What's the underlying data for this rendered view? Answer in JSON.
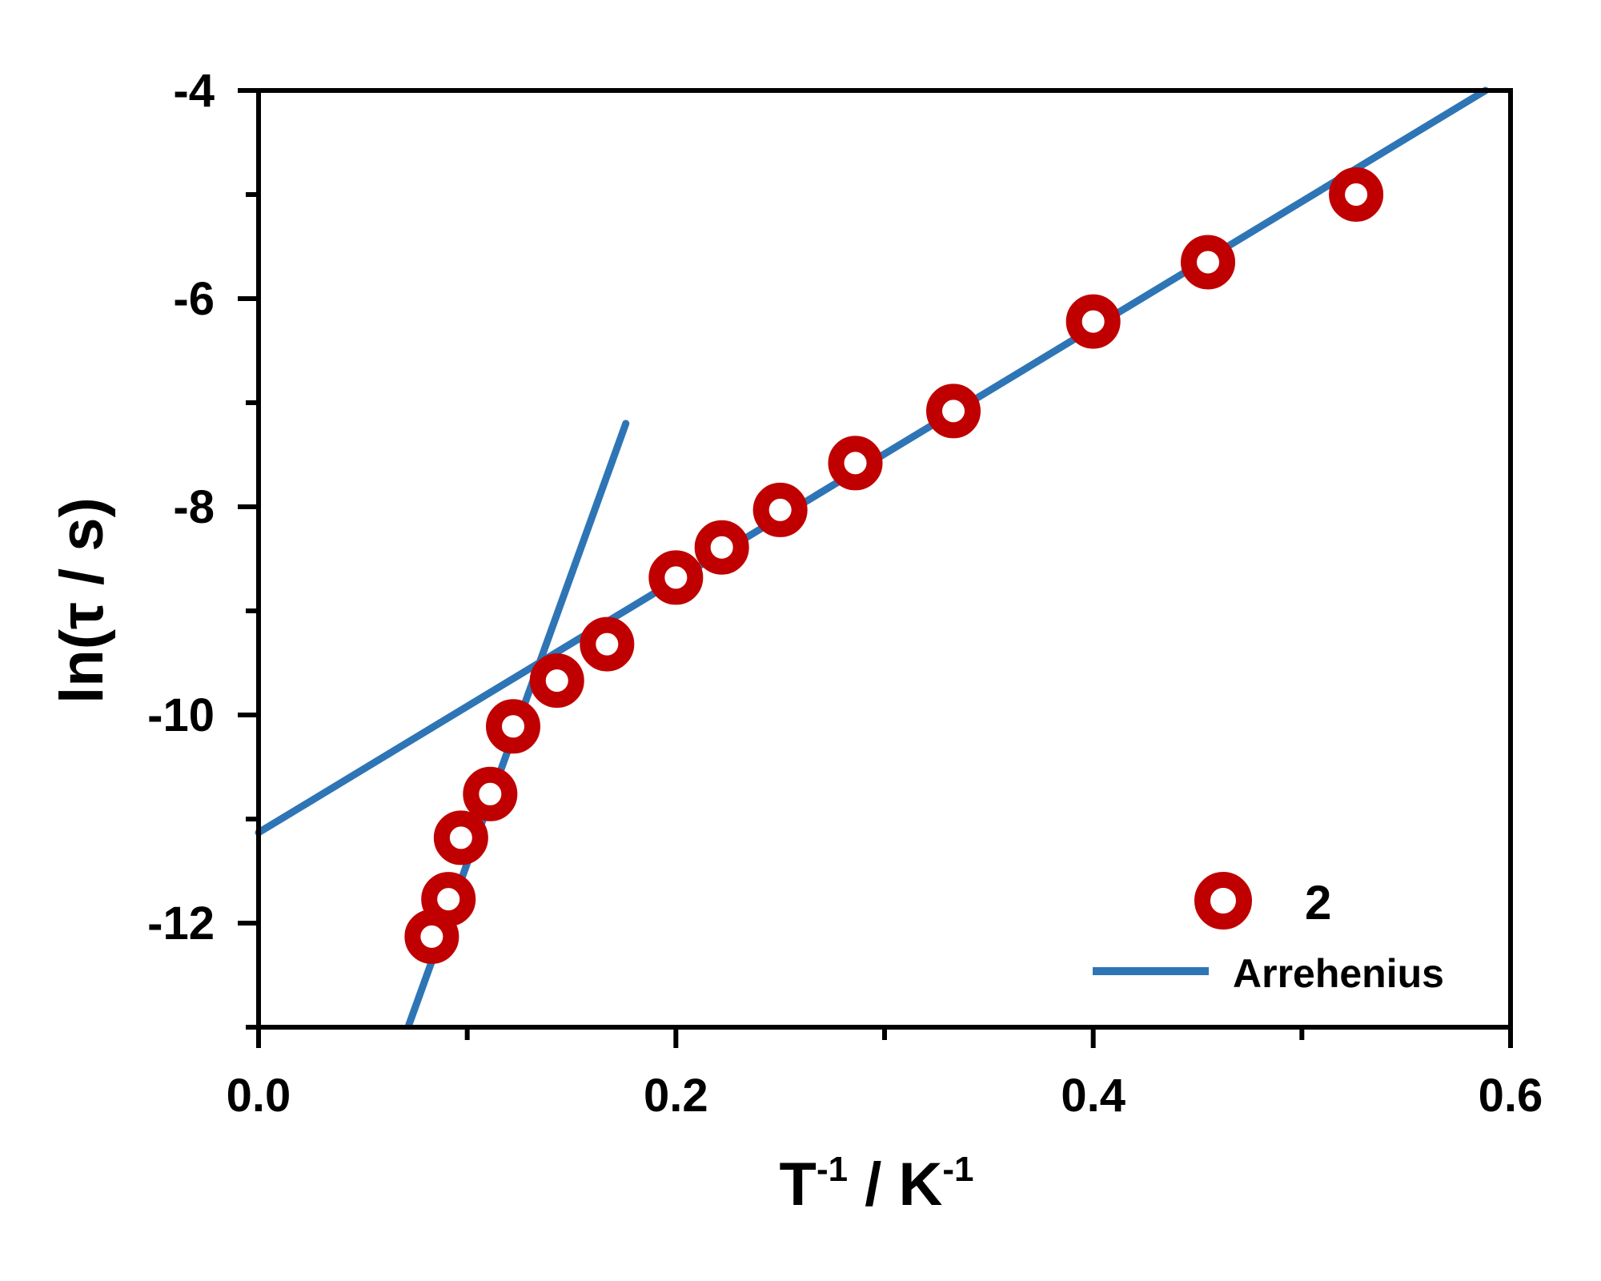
{
  "chart_data": {
    "type": "scatter",
    "xlabel": "T",
    "xlabel_sup": "-1",
    "xlabel_unit": "/ K",
    "xlabel_unit_sup": "-1",
    "ylabel": "ln(τ / s)",
    "xlim": [
      0.0,
      0.6
    ],
    "ylim": [
      -13,
      -4
    ],
    "x_ticks": [
      0.0,
      0.2,
      0.4,
      0.6
    ],
    "x_tick_labels": [
      "0.0",
      "0.2",
      "0.4",
      "0.6"
    ],
    "x_minor_ticks": [
      0.1,
      0.3,
      0.5
    ],
    "y_ticks": [
      -4,
      -6,
      -8,
      -10,
      -12
    ],
    "y_tick_labels": [
      "-4",
      "-6",
      "-8",
      "-10",
      "-12"
    ],
    "y_minor_ticks": [
      -5,
      -7,
      -9,
      -11,
      -13
    ],
    "grid": false,
    "legend_position": "bottom-right",
    "series": [
      {
        "name": "2",
        "kind": "scatter",
        "marker": "open-circle",
        "color": "#c00000",
        "points": [
          {
            "x": 0.083,
            "y": -12.13
          },
          {
            "x": 0.091,
            "y": -11.77
          },
          {
            "x": 0.097,
            "y": -11.18
          },
          {
            "x": 0.111,
            "y": -10.76
          },
          {
            "x": 0.122,
            "y": -10.11
          },
          {
            "x": 0.143,
            "y": -9.67
          },
          {
            "x": 0.167,
            "y": -9.32
          },
          {
            "x": 0.2,
            "y": -8.68
          },
          {
            "x": 0.222,
            "y": -8.39
          },
          {
            "x": 0.25,
            "y": -8.03
          },
          {
            "x": 0.286,
            "y": -7.58
          },
          {
            "x": 0.333,
            "y": -7.08
          },
          {
            "x": 0.4,
            "y": -6.22
          },
          {
            "x": 0.455,
            "y": -5.65
          },
          {
            "x": 0.526,
            "y": -5.0
          }
        ]
      },
      {
        "name": "Arrehenius",
        "kind": "line",
        "color": "#2e75b6",
        "segments": [
          {
            "x": [
              0.0,
              0.588
            ],
            "y": [
              -11.13,
              -4.0
            ]
          },
          {
            "x": [
              0.072,
              0.176
            ],
            "y": [
              -12.98,
              -7.2
            ]
          }
        ]
      }
    ]
  }
}
